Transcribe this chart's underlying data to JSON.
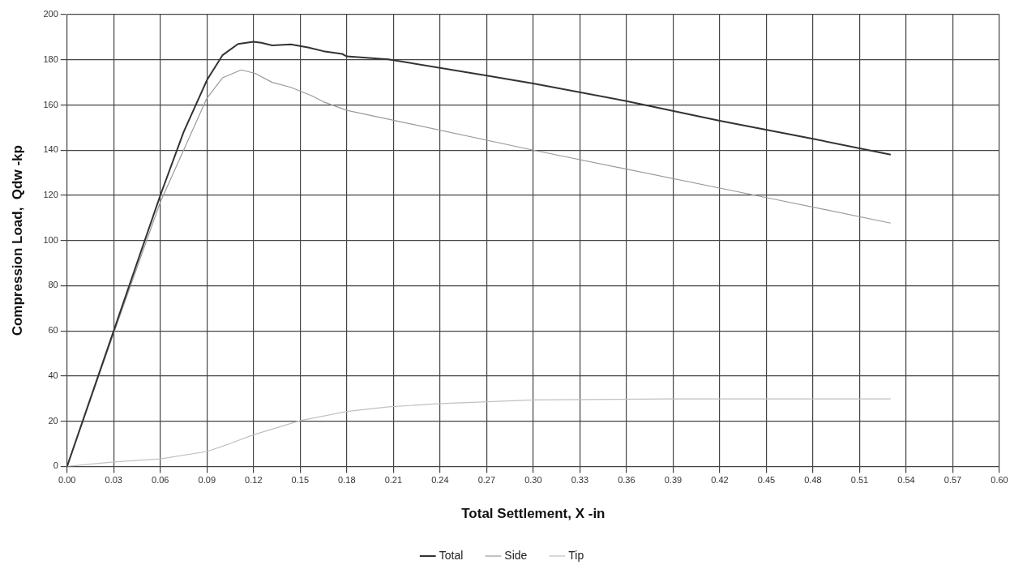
{
  "chart_data": {
    "type": "line",
    "xlabel": "Total Settlement, X -in",
    "ylabel": "Compression Load,  Qdw -kp",
    "xlim": [
      0,
      0.6
    ],
    "ylim": [
      0,
      200
    ],
    "xticks": [
      {
        "value": 0,
        "label": "0.00"
      },
      {
        "value": 0.03,
        "label": "0.03"
      },
      {
        "value": 0.06,
        "label": "0.06"
      },
      {
        "value": 0.09,
        "label": "0.09"
      },
      {
        "value": 0.12,
        "label": "0.12"
      },
      {
        "value": 0.15,
        "label": "0.15"
      },
      {
        "value": 0.18,
        "label": "0.18"
      },
      {
        "value": 0.21,
        "label": "0.21"
      },
      {
        "value": 0.24,
        "label": "0.24"
      },
      {
        "value": 0.27,
        "label": "0.27"
      },
      {
        "value": 0.3,
        "label": "0.30"
      },
      {
        "value": 0.33,
        "label": "0.33"
      },
      {
        "value": 0.36,
        "label": "0.36"
      },
      {
        "value": 0.39,
        "label": "0.39"
      },
      {
        "value": 0.42,
        "label": "0.42"
      },
      {
        "value": 0.45,
        "label": "0.45"
      },
      {
        "value": 0.48,
        "label": "0.48"
      },
      {
        "value": 0.51,
        "label": "0.51"
      },
      {
        "value": 0.54,
        "label": "0.54"
      },
      {
        "value": 0.57,
        "label": "0.57"
      },
      {
        "value": 0.6,
        "label": "0.60"
      }
    ],
    "yticks": [
      0,
      20,
      40,
      60,
      80,
      100,
      120,
      140,
      160,
      180,
      200
    ],
    "grid": true,
    "legend": "bottom",
    "marker": "none",
    "line_style": "solid",
    "series": [
      {
        "name": "Total",
        "color": "#333333",
        "x": [
          0,
          0.03,
          0.06,
          0.075,
          0.09,
          0.1,
          0.11,
          0.12,
          0.125,
          0.132,
          0.144,
          0.155,
          0.165,
          0.177,
          0.18,
          0.207,
          0.21,
          0.27,
          0.3,
          0.36,
          0.42,
          0.48,
          0.53
        ],
        "values": [
          0,
          60,
          120,
          148,
          171,
          182,
          187,
          188,
          187.5,
          186.4,
          186.8,
          185.5,
          183.8,
          182.6,
          181.5,
          180.2,
          179.8,
          173,
          169.5,
          161.7,
          153,
          145,
          138
        ]
      },
      {
        "name": "Side",
        "color": "#9a9a9a",
        "x": [
          0,
          0.03,
          0.06,
          0.075,
          0.09,
          0.1,
          0.112,
          0.121,
          0.132,
          0.144,
          0.157,
          0.165,
          0.18,
          0.207,
          0.3,
          0.45,
          0.53
        ],
        "values": [
          0,
          59,
          117,
          140,
          163,
          172,
          175.5,
          174,
          170,
          167.8,
          164.2,
          161.4,
          157.6,
          153.7,
          140,
          119,
          107.7
        ]
      },
      {
        "name": "Tip",
        "color": "#c0c0c0",
        "x": [
          0,
          0.03,
          0.06,
          0.09,
          0.104,
          0.12,
          0.15,
          0.18,
          0.207,
          0.241,
          0.3,
          0.385,
          0.53
        ],
        "values": [
          0,
          2,
          3.3,
          6.6,
          9.9,
          14,
          20.3,
          24.3,
          26.4,
          27.8,
          29.4,
          29.9,
          29.9
        ]
      }
    ]
  }
}
